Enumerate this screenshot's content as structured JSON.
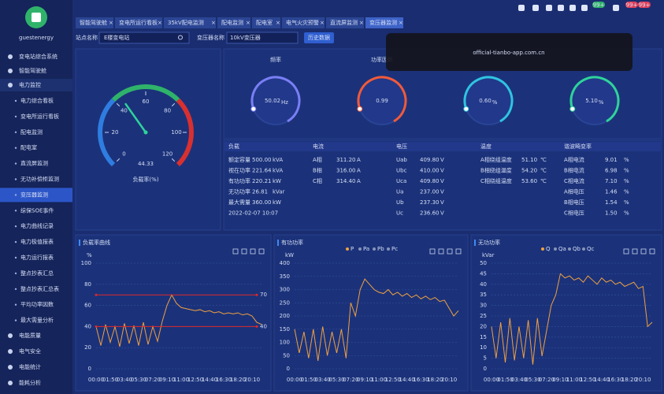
{
  "sidebar": {
    "user": "guestenergy",
    "groups_top": [
      "变电站综合系统",
      "智能驾驶舱",
      "电力监控"
    ],
    "submenu": [
      {
        "label": "电力综合看板"
      },
      {
        "label": "变电所运行看板"
      },
      {
        "label": "配电监测"
      },
      {
        "label": "配电室"
      },
      {
        "label": "直流屏监测"
      },
      {
        "label": "无功补偿柜监测"
      },
      {
        "label": "变压器监测",
        "active": true
      },
      {
        "label": "综保SOE事件"
      },
      {
        "label": "电力曲线记录"
      },
      {
        "label": "电力极值报表"
      },
      {
        "label": "电力运行报表"
      },
      {
        "label": "整点抄表汇总"
      },
      {
        "label": "整点抄表汇总表"
      },
      {
        "label": "平均功率因数"
      },
      {
        "label": "最大需量分析"
      }
    ],
    "groups_bottom": [
      "电能质量",
      "电气安全",
      "电能统计",
      "能耗分析"
    ]
  },
  "badges": [
    "99+",
    "99+",
    "99+"
  ],
  "tabs": [
    {
      "label": "智能驾驶舱"
    },
    {
      "label": "变电所运行看板"
    },
    {
      "label": "35kV配电监测"
    },
    {
      "label": "配电监测"
    },
    {
      "label": "配电室"
    },
    {
      "label": "电气火灾预警"
    },
    {
      "label": "直流屏监测"
    },
    {
      "label": "变压器监测",
      "active": true
    }
  ],
  "filters": {
    "station_label": "站点名称",
    "station": "E楼变电站",
    "transformer_label": "变压器名称",
    "transformer": "10kV变压器",
    "history_button": "历史数据"
  },
  "gauge": {
    "value": 44.33,
    "label": "负载率(%)",
    "lim": [
      0,
      120
    ],
    "ticks": [
      0,
      20,
      40,
      60,
      80,
      100,
      120
    ]
  },
  "rings": [
    {
      "label": "频率",
      "value": 50.02,
      "unit": "Hz",
      "color": "#7a7ff5"
    },
    {
      "label": "功率因数",
      "value": 0.99,
      "color": "#f05a3a"
    },
    {
      "value": 0.6,
      "value_label": "0.60",
      "unit": "%",
      "color": "#2fc4e0"
    },
    {
      "value": 5.1,
      "value_label": "5.10",
      "unit": "%",
      "color": "#2fd39a"
    }
  ],
  "watermark": "official-tianbo-app.com.cn",
  "table": {
    "headers": [
      "负载",
      "电流",
      "电压",
      "温度",
      "谐波畸变率"
    ],
    "columns": [
      [
        {
          "label": "额定容量",
          "value": "500.00",
          "unit": "kVA"
        },
        {
          "label": "视在功率",
          "value": "221.64",
          "unit": "kVA"
        },
        {
          "label": "有功功率",
          "value": "220.21",
          "unit": "kW"
        },
        {
          "label": "无功功率",
          "value": "26.81",
          "unit": "kVar"
        },
        {
          "label": "最大需量",
          "value": "360.00",
          "unit": "kW"
        },
        {
          "label": "2022-02-07 10:07"
        }
      ],
      [
        {
          "label": "A相",
          "value": "311.20",
          "unit": "A"
        },
        {
          "label": "B相",
          "value": "316.00",
          "unit": "A"
        },
        {
          "label": "C相",
          "value": "314.40",
          "unit": "A",
          "alarm": true
        }
      ],
      [
        {
          "label": "Uab",
          "value": "409.80",
          "unit": "V"
        },
        {
          "label": "Ubc",
          "value": "410.00",
          "unit": "V"
        },
        {
          "label": "Uca",
          "value": "409.80",
          "unit": "V",
          "alarm": true
        },
        {
          "label": "Ua",
          "value": "237.00",
          "unit": "V"
        },
        {
          "label": "Ub",
          "value": "237.30",
          "unit": "V"
        },
        {
          "label": "Uc",
          "value": "236.60",
          "unit": "V",
          "alarm": true
        }
      ],
      [
        {
          "label": "A相绕组温度",
          "value": "51.10",
          "unit": "℃"
        },
        {
          "label": "B相绕组温度",
          "value": "54.20",
          "unit": "℃"
        },
        {
          "label": "C相绕组温度",
          "value": "53.60",
          "unit": "℃",
          "alarm": true
        }
      ],
      [
        {
          "label": "A相电流",
          "value": "9.01",
          "unit": "%"
        },
        {
          "label": "B相电流",
          "value": "6.98",
          "unit": "%"
        },
        {
          "label": "C相电流",
          "value": "7.10",
          "unit": "%",
          "alarm": true
        },
        {
          "label": "A相电压",
          "value": "1.46",
          "unit": "%"
        },
        {
          "label": "B相电压",
          "value": "1.54",
          "unit": "%"
        },
        {
          "label": "C相电压",
          "value": "1.50",
          "unit": "%",
          "alarm": true
        }
      ]
    ]
  },
  "charts": [
    {
      "type": "line",
      "title": "负载率曲线",
      "y_unit": "%",
      "ylim": [
        0,
        100
      ],
      "yticks": [
        0,
        20,
        40,
        60,
        80,
        100
      ],
      "categories": [
        "00:00",
        null,
        null,
        "01:50",
        null,
        null,
        "03:40",
        null,
        null,
        "05:30",
        null,
        null,
        "07:20",
        null,
        null,
        "09:10",
        null,
        null,
        "11:00",
        null,
        null,
        "12:50",
        null,
        null,
        "14:40",
        null,
        null,
        "16:30",
        null,
        null,
        "18:20",
        null,
        null,
        "20:10",
        null,
        null
      ],
      "series": [
        {
          "name": "负载率",
          "color": "#f0a040",
          "values": [
            40,
            22,
            42,
            25,
            40,
            21,
            43,
            24,
            41,
            22,
            44,
            23,
            40,
            26,
            45,
            60,
            70,
            62,
            58,
            57,
            56,
            55,
            56,
            54,
            55,
            53,
            54,
            52,
            53,
            52,
            53,
            51,
            52,
            50,
            44,
            42
          ]
        }
      ],
      "thresholds": [
        {
          "value": 70,
          "color": "#e02828"
        },
        {
          "value": 40,
          "color": "#e02828"
        }
      ]
    },
    {
      "type": "line",
      "title": "有功功率",
      "y_unit": "kW",
      "ylim": [
        0,
        400
      ],
      "yticks": [
        0,
        50,
        100,
        150,
        200,
        250,
        300,
        350,
        400
      ],
      "categories": [
        "00:00",
        null,
        null,
        "01:50",
        null,
        null,
        "03:40",
        null,
        null,
        "05:30",
        null,
        null,
        "07:20",
        null,
        null,
        "09:10",
        null,
        null,
        "11:00",
        null,
        null,
        "12:50",
        null,
        null,
        "14:40",
        null,
        null,
        "16:30",
        null,
        null,
        "18:20",
        null,
        null,
        "20:10",
        null,
        null
      ],
      "series": [
        {
          "name": "P",
          "color": "#f0a040",
          "values": [
            150,
            60,
            140,
            40,
            150,
            30,
            160,
            50,
            140,
            60,
            150,
            40,
            250,
            200,
            300,
            340,
            320,
            300,
            290,
            285,
            300,
            280,
            290,
            275,
            285,
            270,
            280,
            265,
            275,
            262,
            270,
            255,
            260,
            230,
            200,
            220
          ]
        }
      ],
      "hidden_series": [
        "Pa",
        "Pb",
        "Pc"
      ]
    },
    {
      "type": "line",
      "title": "无功功率",
      "y_unit": "kVar",
      "ylim": [
        0,
        50
      ],
      "yticks": [
        0,
        5,
        10,
        15,
        20,
        25,
        30,
        35,
        40,
        45,
        50
      ],
      "categories": [
        "00:00",
        null,
        null,
        "01:50",
        null,
        null,
        "03:40",
        null,
        null,
        "05:30",
        null,
        null,
        "07:20",
        null,
        null,
        "09:10",
        null,
        null,
        "11:00",
        null,
        null,
        "12:50",
        null,
        null,
        "14:40",
        null,
        null,
        "16:30",
        null,
        null,
        "18:20",
        null,
        null,
        "20:10",
        null,
        null
      ],
      "series": [
        {
          "name": "Q",
          "color": "#f0a040",
          "values": [
            20,
            5,
            22,
            3,
            24,
            4,
            20,
            5,
            23,
            2,
            24,
            6,
            18,
            30,
            35,
            45,
            43,
            44,
            42,
            43,
            41,
            44,
            42,
            40,
            43,
            41,
            42,
            40,
            41,
            39,
            40,
            41,
            38,
            39,
            20,
            22
          ]
        }
      ],
      "hidden_series": [
        "Qa",
        "Qb",
        "Qc"
      ]
    }
  ]
}
